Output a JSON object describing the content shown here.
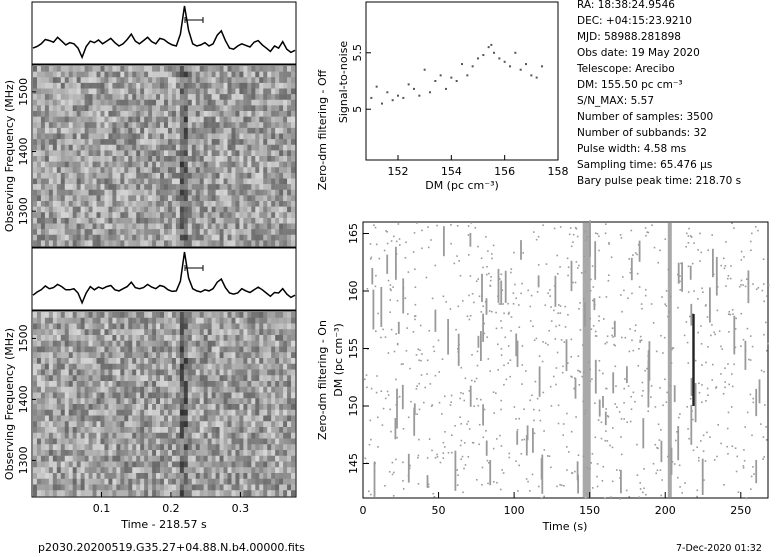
{
  "figure": {
    "vlabel_off": "Zero-dm filtering - Off",
    "vlabel_on": "Zero-dm filtering - On",
    "filename": "p2030.20200519.G35.27+04.88.N.b4.00000.fits",
    "timestamp": "7-Dec-2020 01:32"
  },
  "info": [
    "RA: 18:38:24.9546",
    "DEC: +04:15:23.9210",
    "MJD: 58988.281898",
    "Obs date: 19 May 2020",
    "Telescope: Arecibo",
    "DM: 155.50 pc cm⁻³",
    "S/N_MAX: 5.57",
    "Number of samples: 3500",
    "Number of subbands: 32",
    "Pulse width: 4.58 ms",
    "Sampling time: 65.476 μs",
    "Bary pulse peak time: 218.70 s"
  ],
  "colors": {
    "gray_marks": "#9a9a9a",
    "candidate": "#222222"
  },
  "chart_data": [
    {
      "type": "line",
      "panel": "pulse-profile-top",
      "x_range": [
        0,
        0.38
      ],
      "values": [
        0.22,
        0.25,
        0.3,
        0.38,
        0.36,
        0.33,
        0.42,
        0.35,
        0.28,
        0.32,
        0.3,
        0.22,
        0.05,
        0.25,
        0.35,
        0.32,
        0.37,
        0.3,
        0.35,
        0.4,
        0.32,
        0.26,
        0.3,
        0.38,
        0.48,
        0.35,
        0.3,
        0.36,
        0.42,
        0.34,
        0.3,
        0.4,
        0.38,
        0.32,
        0.28,
        0.26,
        0.48,
        1.0,
        0.55,
        0.3,
        0.26,
        0.28,
        0.32,
        0.26,
        0.3,
        0.46,
        0.54,
        0.36,
        0.22,
        0.2,
        0.26,
        0.3,
        0.27,
        0.24,
        0.33,
        0.36,
        0.28,
        0.22,
        0.16,
        0.26,
        0.22,
        0.34,
        0.2,
        0.14,
        0.18
      ]
    },
    {
      "type": "heatmap",
      "panel": "dynamic-spectrum-top",
      "ylabel": "Observing Frequency (MHz)",
      "yticks": [
        1300,
        1400,
        1500
      ]
    },
    {
      "type": "line",
      "panel": "pulse-profile-bottom",
      "x_range": [
        0,
        0.38
      ],
      "values": [
        0.2,
        0.26,
        0.3,
        0.37,
        0.32,
        0.34,
        0.4,
        0.36,
        0.3,
        0.3,
        0.32,
        0.24,
        0.06,
        0.24,
        0.36,
        0.3,
        0.35,
        0.32,
        0.36,
        0.38,
        0.3,
        0.28,
        0.32,
        0.36,
        0.44,
        0.34,
        0.32,
        0.34,
        0.4,
        0.35,
        0.32,
        0.38,
        0.36,
        0.3,
        0.27,
        0.28,
        0.46,
        1.0,
        0.52,
        0.32,
        0.28,
        0.26,
        0.3,
        0.28,
        0.32,
        0.44,
        0.5,
        0.34,
        0.24,
        0.22,
        0.24,
        0.32,
        0.28,
        0.25,
        0.3,
        0.35,
        0.3,
        0.24,
        0.18,
        0.25,
        0.24,
        0.32,
        0.22,
        0.16,
        0.2
      ]
    },
    {
      "type": "heatmap",
      "panel": "dynamic-spectrum-bottom",
      "ylabel": "Observing Frequency (MHz)",
      "xlabel": "Time - 218.57 s",
      "xticks": [
        0.1,
        0.2,
        0.3
      ],
      "xlim": [
        0,
        0.38
      ],
      "yticks": [
        1300,
        1400,
        1500
      ]
    },
    {
      "type": "scatter",
      "panel": "snr-vs-dm",
      "xlabel": "DM (pc cm⁻³)",
      "ylabel": "Signal-to-noise",
      "xlim": [
        150.8,
        158
      ],
      "ylim": [
        4.55,
        5.95
      ],
      "xticks": [
        152,
        154,
        156,
        158
      ],
      "yticks": [
        5,
        5.5
      ],
      "x": [
        151.0,
        151.2,
        151.4,
        151.6,
        151.8,
        152.0,
        152.2,
        152.4,
        152.6,
        152.8,
        153.0,
        153.2,
        153.4,
        153.6,
        153.8,
        154.0,
        154.2,
        154.4,
        154.6,
        154.8,
        155.0,
        155.2,
        155.4,
        155.5,
        155.6,
        155.8,
        156.0,
        156.2,
        156.4,
        156.6,
        156.8,
        157.0,
        157.2,
        157.4
      ],
      "y": [
        5.1,
        5.2,
        5.05,
        5.15,
        5.08,
        5.12,
        5.1,
        5.22,
        5.18,
        5.12,
        5.35,
        5.15,
        5.25,
        5.3,
        5.18,
        5.28,
        5.25,
        5.4,
        5.3,
        5.38,
        5.45,
        5.48,
        5.55,
        5.57,
        5.5,
        5.45,
        5.42,
        5.38,
        5.5,
        5.35,
        5.4,
        5.3,
        5.28,
        5.38
      ]
    },
    {
      "type": "scatter",
      "panel": "dm-vs-time",
      "xlabel": "Time (s)",
      "ylabel": "DM (pc cm⁻³)",
      "xlim": [
        0,
        268
      ],
      "ylim": [
        142,
        166
      ],
      "xticks": [
        0,
        50,
        100,
        150,
        200,
        250
      ],
      "yticks": [
        145,
        150,
        155,
        160,
        165
      ]
    }
  ]
}
